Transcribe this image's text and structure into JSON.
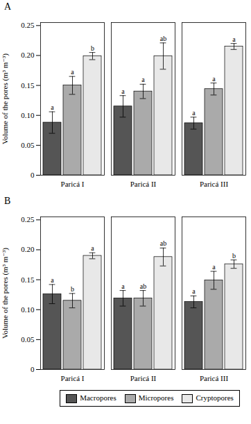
{
  "chart_data": [
    {
      "type": "bar",
      "title": "A",
      "categories": [
        "Paricá I",
        "Paricá II",
        "Paricá III"
      ],
      "series": [
        {
          "name": "Macropores",
          "color": "#555555",
          "values": [
            0.088,
            0.115,
            0.087
          ],
          "errors": [
            0.018,
            0.018,
            0.01
          ],
          "letters": [
            "a",
            "a",
            "a"
          ]
        },
        {
          "name": "Micropores",
          "color": "#aaaaaa",
          "values": [
            0.15,
            0.14,
            0.144
          ],
          "errors": [
            0.015,
            0.012,
            0.01
          ],
          "letters": [
            "a",
            "a",
            "a"
          ]
        },
        {
          "name": "Cryptopores",
          "color": "#e8e8e8",
          "values": [
            0.199,
            0.199,
            0.215
          ],
          "errors": [
            0.006,
            0.022,
            0.005
          ],
          "letters": [
            "b",
            "ab",
            "a"
          ]
        }
      ],
      "ylabel": "Volume of the pores (m³ m⁻³)",
      "ylim": [
        0,
        0.255
      ],
      "yticks": [
        0,
        0.05,
        {
          "value": 0.1,
          "label": "0.10"
        },
        0.15,
        {
          "value": 0.2,
          "label": "0.20"
        },
        0.25
      ],
      "grid": false
    },
    {
      "type": "bar",
      "title": "B",
      "categories": [
        "Paricá I",
        "Paricá II",
        "Paricá III"
      ],
      "series": [
        {
          "name": "Macropores",
          "color": "#555555",
          "values": [
            0.126,
            0.119,
            0.113
          ],
          "errors": [
            0.016,
            0.013,
            0.01
          ],
          "letters": [
            "a",
            "a",
            "a"
          ]
        },
        {
          "name": "Micropores",
          "color": "#aaaaaa",
          "values": [
            0.115,
            0.119,
            0.149
          ],
          "errors": [
            0.012,
            0.013,
            0.015
          ],
          "letters": [
            "b",
            "ab",
            "a"
          ]
        },
        {
          "name": "Cryptopores",
          "color": "#e8e8e8",
          "values": [
            0.19,
            0.188,
            0.176
          ],
          "errors": [
            0.005,
            0.015,
            0.007
          ],
          "letters": [
            "a",
            "ab",
            "b"
          ]
        }
      ],
      "ylabel": "Volume of the pores (m³ m⁻³)",
      "ylim": [
        0,
        0.255
      ],
      "yticks": [
        0,
        0.05,
        {
          "value": 0.1,
          "label": "0.10"
        },
        0.15,
        {
          "value": 0.2,
          "label": "0.20"
        },
        0.25
      ],
      "grid": false,
      "legend": "bottom"
    }
  ]
}
